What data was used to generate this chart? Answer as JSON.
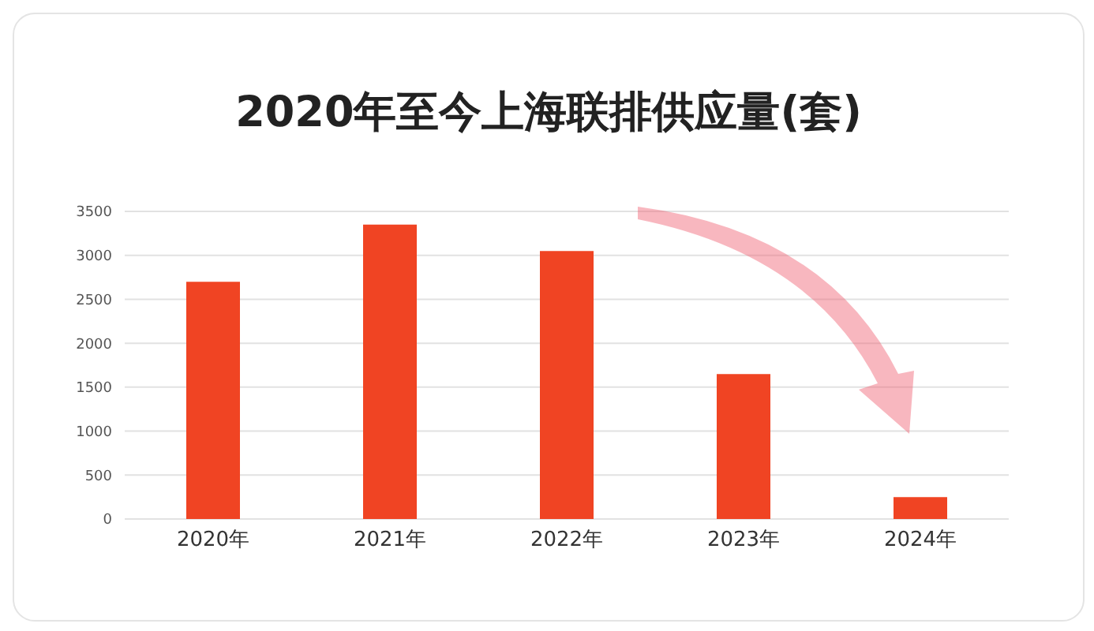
{
  "chart_data": {
    "type": "bar",
    "title": "2020年至今上海联排供应量(套)",
    "categories": [
      "2020年",
      "2021年",
      "2022年",
      "2023年",
      "2024年"
    ],
    "values": [
      2700,
      3350,
      3050,
      1650,
      250
    ],
    "color": "#f04423",
    "ylim": [
      0,
      3500
    ],
    "yticks": [
      0,
      500,
      1000,
      1500,
      2000,
      2500,
      3000,
      3500
    ],
    "grid": "y"
  }
}
